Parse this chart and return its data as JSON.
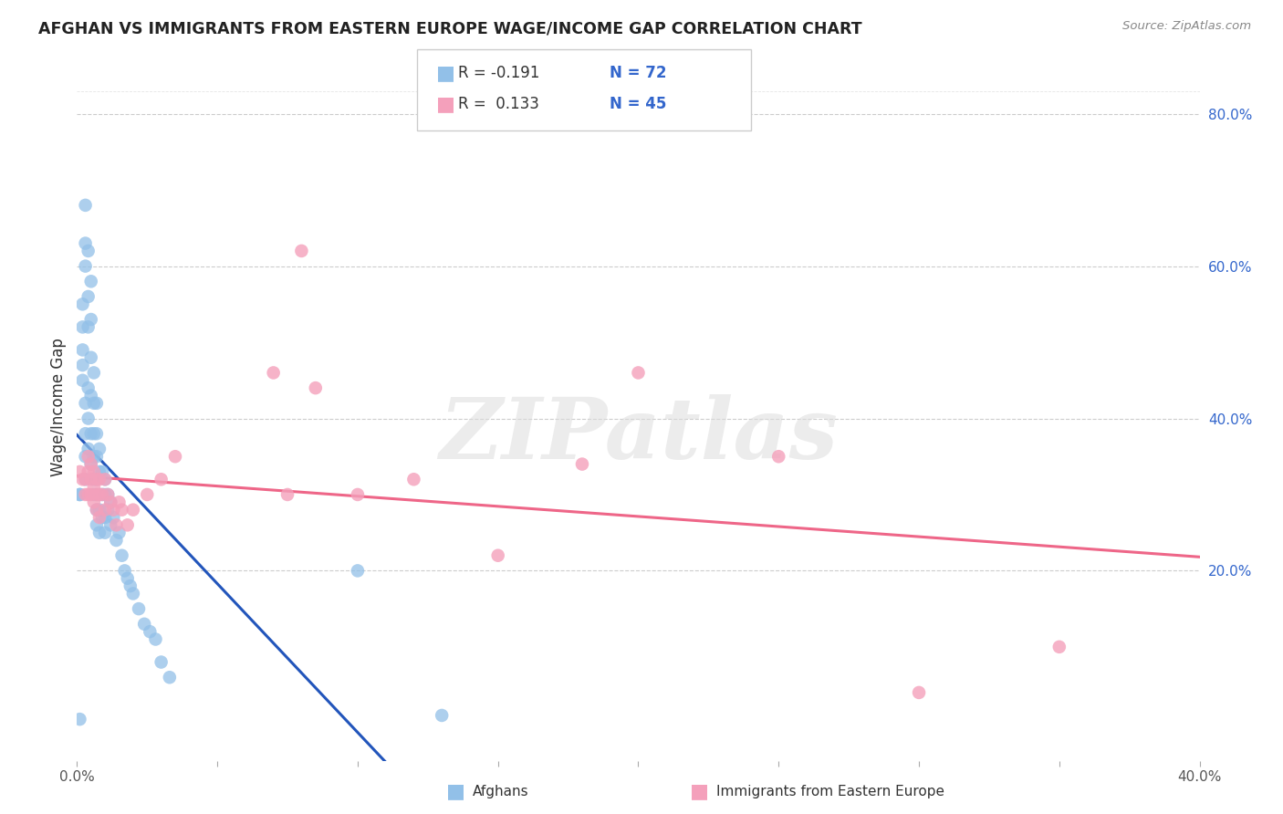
{
  "title": "AFGHAN VS IMMIGRANTS FROM EASTERN EUROPE WAGE/INCOME GAP CORRELATION CHART",
  "source": "Source: ZipAtlas.com",
  "ylabel": "Wage/Income Gap",
  "xlim": [
    0.0,
    0.4
  ],
  "ylim": [
    -0.05,
    0.88
  ],
  "yticks_right": [
    0.2,
    0.4,
    0.6,
    0.8
  ],
  "ytick_labels_right": [
    "20.0%",
    "40.0%",
    "60.0%",
    "80.0%"
  ],
  "legend_R1": "-0.191",
  "legend_N1": "72",
  "legend_R2": "0.133",
  "legend_N2": "45",
  "color_blue": "#92C0E8",
  "color_pink": "#F4A0BB",
  "color_line_blue": "#2255BB",
  "color_line_pink": "#EE6688",
  "color_text_blue": "#3366CC",
  "watermark": "ZIPatlas",
  "background_color": "#FFFFFF",
  "grid_color": "#CCCCCC",
  "afghan_x": [
    0.001,
    0.001,
    0.001,
    0.002,
    0.002,
    0.002,
    0.002,
    0.002,
    0.003,
    0.003,
    0.003,
    0.003,
    0.003,
    0.003,
    0.003,
    0.004,
    0.004,
    0.004,
    0.004,
    0.004,
    0.004,
    0.005,
    0.005,
    0.005,
    0.005,
    0.005,
    0.005,
    0.006,
    0.006,
    0.006,
    0.006,
    0.006,
    0.006,
    0.007,
    0.007,
    0.007,
    0.007,
    0.007,
    0.007,
    0.007,
    0.008,
    0.008,
    0.008,
    0.008,
    0.008,
    0.009,
    0.009,
    0.009,
    0.01,
    0.01,
    0.01,
    0.01,
    0.011,
    0.011,
    0.012,
    0.012,
    0.013,
    0.014,
    0.015,
    0.016,
    0.017,
    0.018,
    0.019,
    0.02,
    0.022,
    0.024,
    0.026,
    0.028,
    0.03,
    0.033,
    0.1,
    0.13
  ],
  "afghan_y": [
    0.005,
    0.3,
    0.3,
    0.55,
    0.52,
    0.49,
    0.47,
    0.45,
    0.68,
    0.63,
    0.6,
    0.42,
    0.38,
    0.35,
    0.32,
    0.62,
    0.56,
    0.52,
    0.44,
    0.4,
    0.36,
    0.58,
    0.53,
    0.48,
    0.43,
    0.38,
    0.34,
    0.46,
    0.42,
    0.38,
    0.35,
    0.32,
    0.3,
    0.42,
    0.38,
    0.35,
    0.32,
    0.3,
    0.28,
    0.26,
    0.36,
    0.33,
    0.3,
    0.28,
    0.25,
    0.33,
    0.3,
    0.27,
    0.32,
    0.3,
    0.27,
    0.25,
    0.3,
    0.28,
    0.29,
    0.26,
    0.27,
    0.24,
    0.25,
    0.22,
    0.2,
    0.19,
    0.18,
    0.17,
    0.15,
    0.13,
    0.12,
    0.11,
    0.08,
    0.06,
    0.2,
    0.01
  ],
  "eastern_x": [
    0.001,
    0.002,
    0.003,
    0.003,
    0.004,
    0.004,
    0.004,
    0.005,
    0.005,
    0.005,
    0.006,
    0.006,
    0.006,
    0.007,
    0.007,
    0.007,
    0.008,
    0.008,
    0.008,
    0.009,
    0.01,
    0.01,
    0.011,
    0.012,
    0.013,
    0.014,
    0.015,
    0.016,
    0.018,
    0.02,
    0.025,
    0.03,
    0.035,
    0.07,
    0.075,
    0.08,
    0.085,
    0.1,
    0.12,
    0.15,
    0.18,
    0.2,
    0.25,
    0.3,
    0.35
  ],
  "eastern_y": [
    0.33,
    0.32,
    0.32,
    0.3,
    0.35,
    0.33,
    0.3,
    0.34,
    0.32,
    0.3,
    0.33,
    0.31,
    0.29,
    0.32,
    0.3,
    0.28,
    0.32,
    0.3,
    0.27,
    0.3,
    0.32,
    0.28,
    0.3,
    0.29,
    0.28,
    0.26,
    0.29,
    0.28,
    0.26,
    0.28,
    0.3,
    0.32,
    0.35,
    0.46,
    0.3,
    0.62,
    0.44,
    0.3,
    0.32,
    0.22,
    0.34,
    0.46,
    0.35,
    0.04,
    0.1
  ]
}
